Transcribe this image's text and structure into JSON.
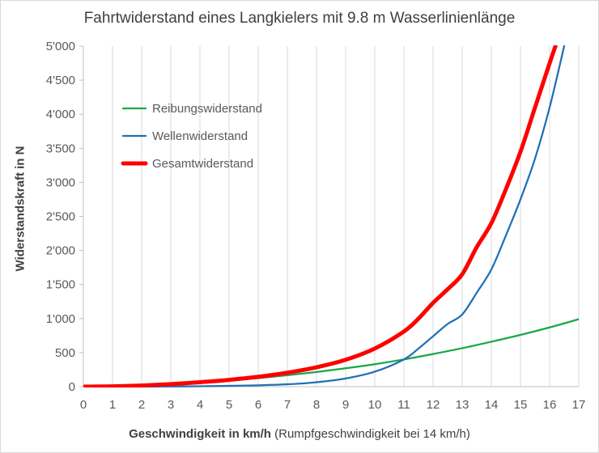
{
  "chart_data": {
    "type": "line",
    "title": "Fahrtwiderstand eines Langkielers mit 9.8 m Wasserlinienlänge",
    "xlabel_bold": "Geschwindigkeit in km/h",
    "xlabel_rest": " (Rumpfgeschwindigkeit bei 14 km/h)",
    "ylabel": "Widerstandskraft in N",
    "xlim": [
      0,
      17
    ],
    "ylim": [
      0,
      5000
    ],
    "x_ticks": [
      "0",
      "1",
      "2",
      "3",
      "4",
      "5",
      "6",
      "7",
      "8",
      "9",
      "10",
      "11",
      "12",
      "13",
      "14",
      "15",
      "16",
      "17"
    ],
    "y_ticks": [
      "0",
      "500",
      "1'000",
      "1'500",
      "2'000",
      "2'500",
      "3'000",
      "3'500",
      "4'000",
      "4'500",
      "5'000"
    ],
    "grid": "vertical",
    "legend_position": "top-left",
    "series": [
      {
        "name": "Reibungswiderstand",
        "color": "#1aa64a",
        "stroke": "thin",
        "x": [
          0,
          1,
          2,
          3,
          4,
          5,
          6,
          7,
          8,
          9,
          10,
          11,
          12,
          13,
          14,
          15,
          16,
          17
        ],
        "y": [
          0,
          4,
          15,
          33,
          58,
          88,
          124,
          167,
          215,
          270,
          330,
          400,
          480,
          565,
          660,
          760,
          870,
          990
        ]
      },
      {
        "name": "Wellenwiderstand",
        "color": "#1f6fb5",
        "stroke": "thin",
        "x": [
          0,
          1,
          2,
          3,
          4,
          5,
          6,
          7,
          8,
          9,
          10,
          11,
          11.5,
          12,
          12.5,
          13,
          13.5,
          14,
          14.5,
          15,
          15.5,
          16,
          16.5
        ],
        "y": [
          0,
          0,
          1,
          3,
          6,
          12,
          20,
          35,
          65,
          120,
          220,
          400,
          560,
          740,
          920,
          1060,
          1380,
          1720,
          2220,
          2750,
          3350,
          4100,
          5000
        ]
      },
      {
        "name": "Gesamtwiderstand",
        "color": "#ff0000",
        "stroke": "thick",
        "x": [
          0,
          1,
          2,
          3,
          4,
          5,
          6,
          7,
          8,
          9,
          10,
          11,
          11.5,
          12,
          12.5,
          13,
          13.5,
          14,
          14.5,
          15,
          15.5,
          16,
          16.2
        ],
        "y": [
          0,
          5,
          17,
          37,
          65,
          100,
          145,
          205,
          285,
          395,
          560,
          810,
          1000,
          1230,
          1430,
          1650,
          2050,
          2400,
          2900,
          3450,
          4100,
          4750,
          5000
        ]
      }
    ]
  }
}
